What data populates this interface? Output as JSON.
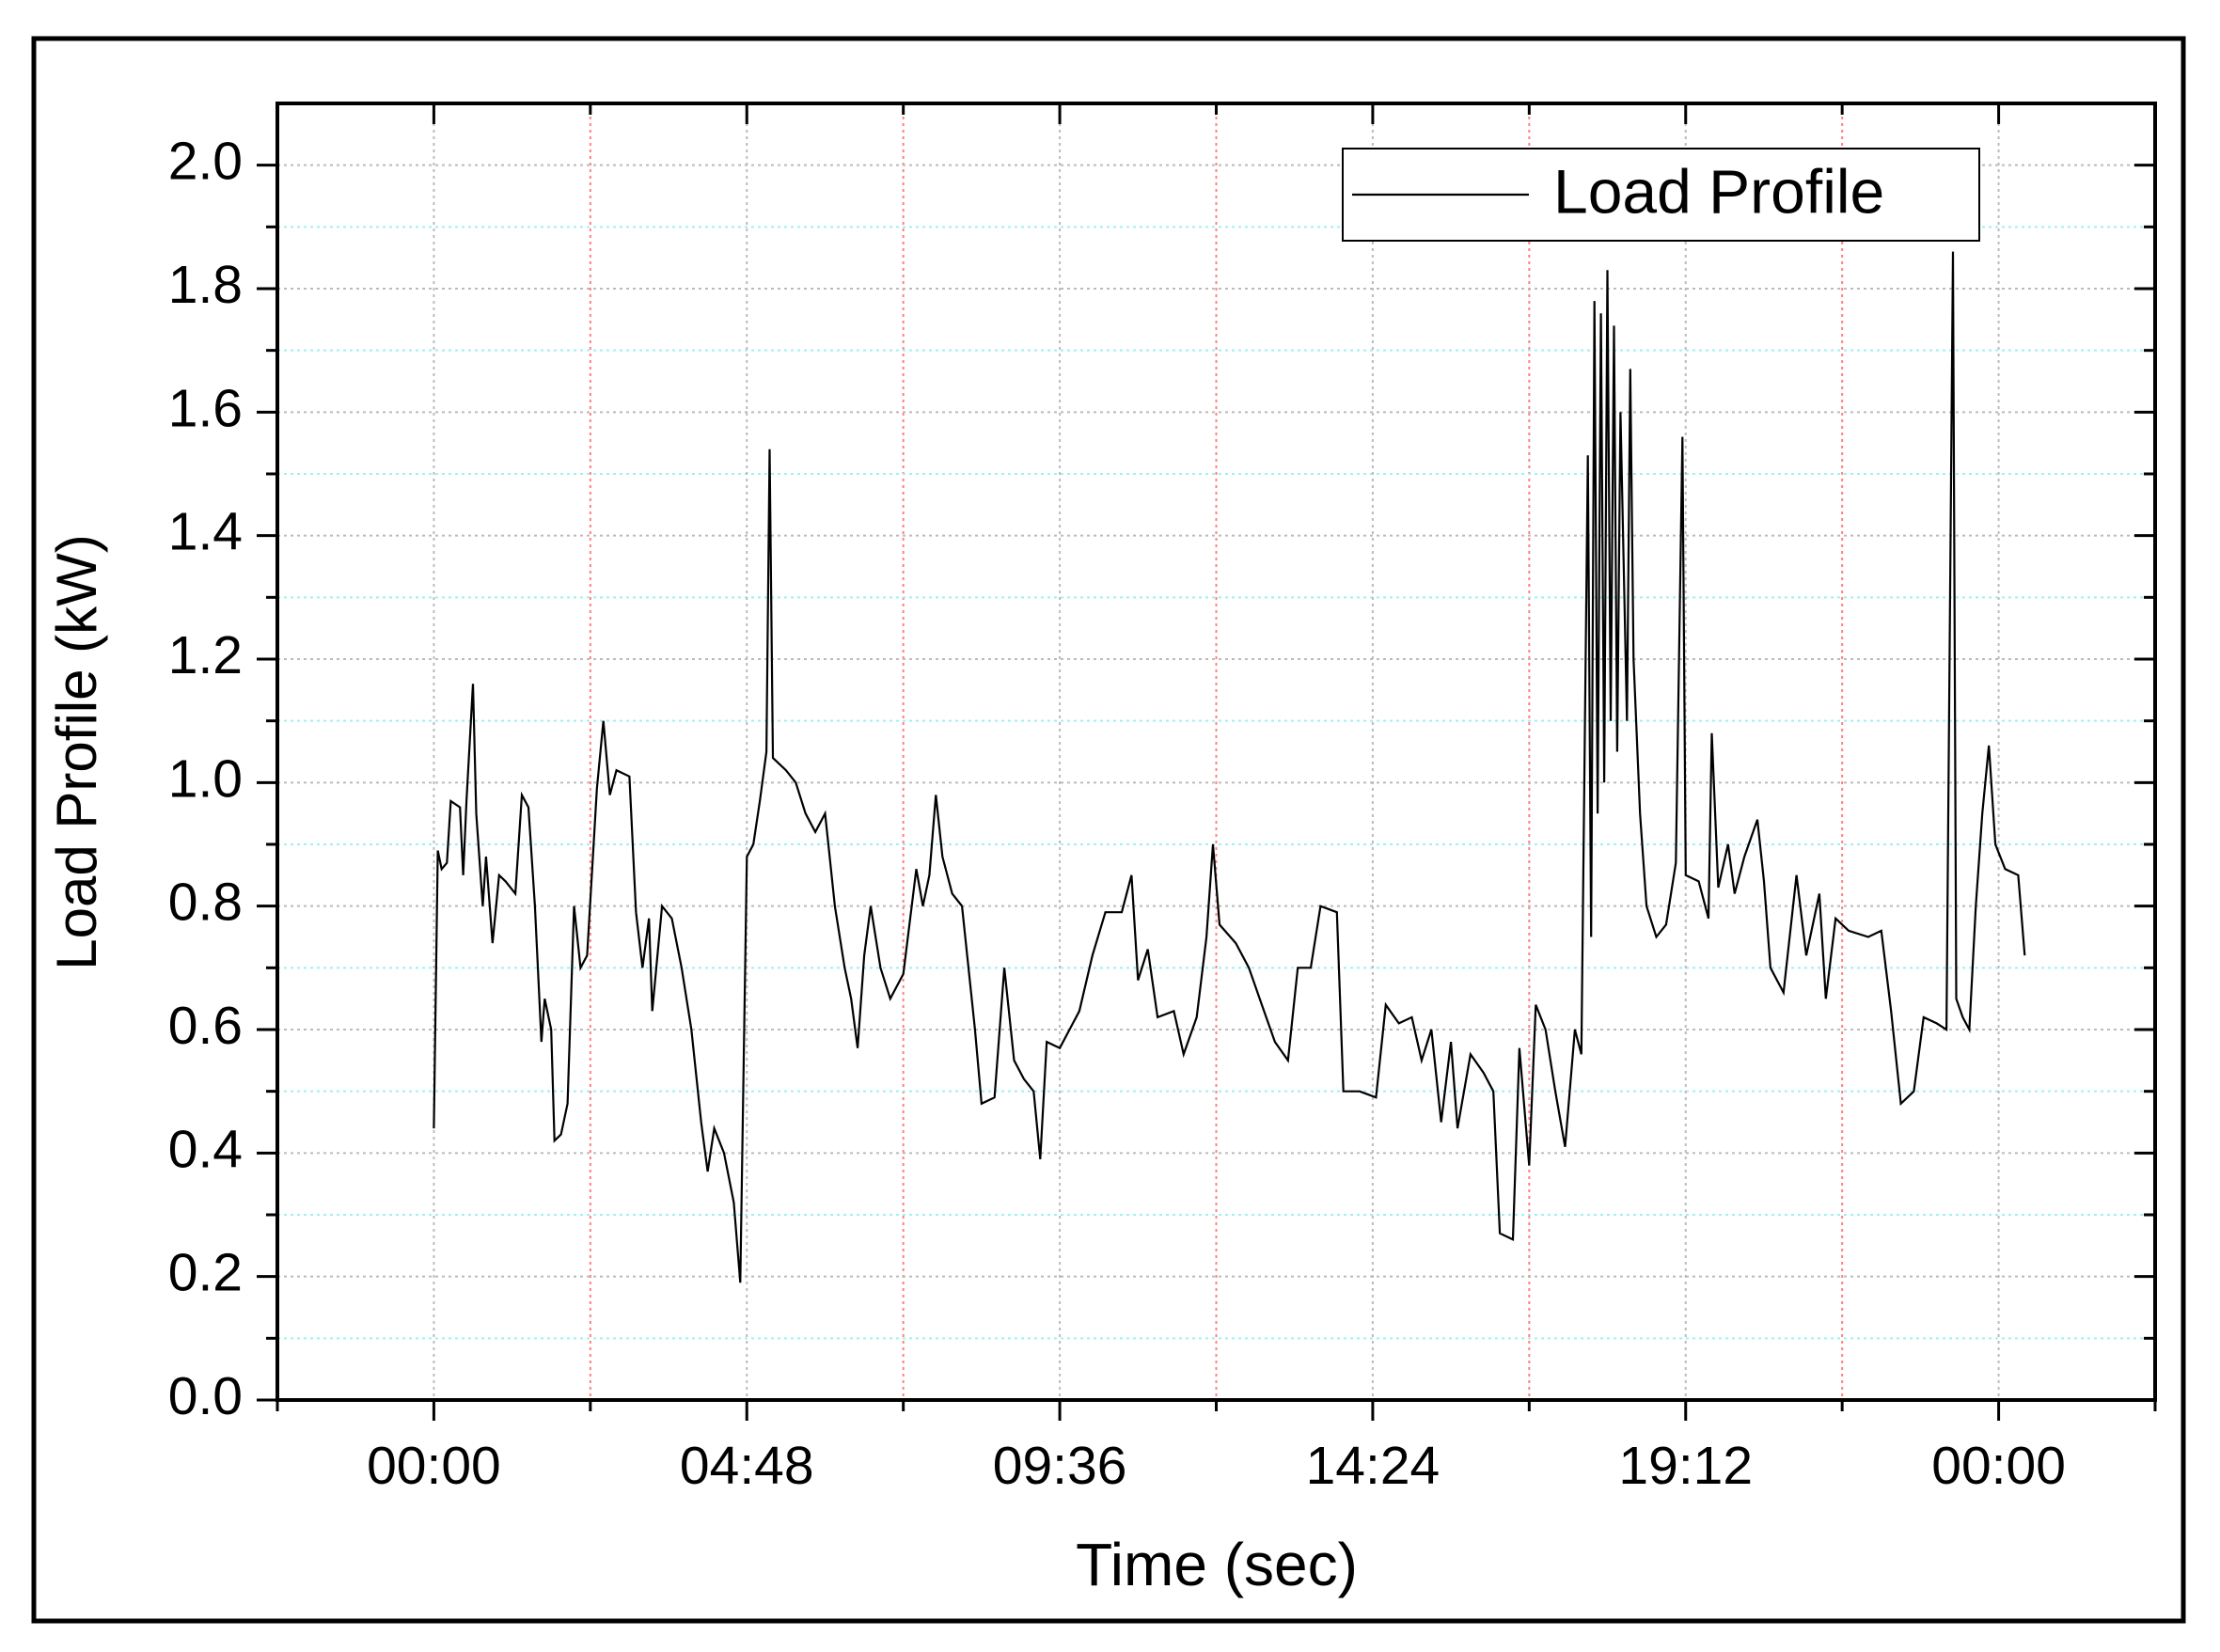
{
  "chart_data": {
    "type": "line",
    "xlabel": "Time (sec)",
    "ylabel": "Load Profile (kW)",
    "xlabel_color": "#ff0000",
    "x": [
      0.0,
      0.06,
      0.12,
      0.2,
      0.26,
      0.4,
      0.45,
      0.5,
      0.6,
      0.65,
      0.75,
      0.8,
      0.9,
      1.0,
      1.1,
      1.25,
      1.35,
      1.45,
      1.55,
      1.65,
      1.7,
      1.8,
      1.85,
      1.95,
      2.05,
      2.15,
      2.25,
      2.35,
      2.5,
      2.6,
      2.7,
      2.8,
      3.0,
      3.1,
      3.2,
      3.3,
      3.35,
      3.5,
      3.65,
      3.8,
      3.95,
      4.1,
      4.2,
      4.3,
      4.45,
      4.6,
      4.7,
      4.8,
      4.9,
      5.0,
      5.1,
      5.15,
      5.2,
      5.4,
      5.55,
      5.7,
      5.85,
      6.0,
      6.15,
      6.3,
      6.4,
      6.5,
      6.6,
      6.7,
      6.85,
      7.0,
      7.2,
      7.4,
      7.5,
      7.6,
      7.7,
      7.8,
      7.95,
      8.1,
      8.3,
      8.4,
      8.6,
      8.75,
      8.9,
      9.05,
      9.2,
      9.3,
      9.4,
      9.6,
      9.9,
      10.1,
      10.3,
      10.55,
      10.7,
      10.8,
      10.95,
      11.1,
      11.35,
      11.5,
      11.7,
      11.85,
      11.95,
      12.05,
      12.3,
      12.5,
      12.7,
      12.9,
      13.1,
      13.25,
      13.45,
      13.6,
      13.85,
      13.95,
      14.2,
      14.45,
      14.6,
      14.8,
      15.0,
      15.15,
      15.3,
      15.45,
      15.6,
      15.7,
      15.9,
      16.1,
      16.25,
      16.35,
      16.55,
      16.65,
      16.8,
      16.9,
      17.05,
      17.2,
      17.35,
      17.5,
      17.6,
      17.7,
      17.75,
      17.8,
      17.85,
      17.9,
      17.95,
      18.0,
      18.05,
      18.1,
      18.15,
      18.2,
      18.3,
      18.35,
      18.4,
      18.5,
      18.6,
      18.75,
      18.9,
      19.05,
      19.15,
      19.2,
      19.4,
      19.55,
      19.6,
      19.7,
      19.85,
      19.95,
      20.1,
      20.3,
      20.4,
      20.5,
      20.7,
      20.9,
      21.05,
      21.25,
      21.35,
      21.5,
      21.7,
      22.0,
      22.2,
      22.35,
      22.5,
      22.7,
      22.85,
      23.05,
      23.2,
      23.3,
      23.35,
      23.45,
      23.55,
      23.65,
      23.75,
      23.85,
      23.95,
      24.1,
      24.3,
      24.4
    ],
    "series": [
      {
        "name": "Load Profile",
        "color": "#000000",
        "values": [
          0.44,
          0.89,
          0.86,
          0.87,
          0.97,
          0.96,
          0.85,
          0.97,
          1.16,
          0.95,
          0.8,
          0.88,
          0.74,
          0.85,
          0.84,
          0.82,
          0.98,
          0.96,
          0.8,
          0.58,
          0.65,
          0.6,
          0.42,
          0.43,
          0.48,
          0.8,
          0.7,
          0.72,
          0.99,
          1.1,
          0.98,
          1.02,
          1.01,
          0.79,
          0.7,
          0.78,
          0.63,
          0.8,
          0.78,
          0.7,
          0.6,
          0.45,
          0.37,
          0.44,
          0.4,
          0.32,
          0.19,
          0.88,
          0.9,
          0.97,
          1.05,
          1.54,
          1.04,
          1.02,
          1.0,
          0.95,
          0.92,
          0.95,
          0.8,
          0.7,
          0.65,
          0.57,
          0.72,
          0.8,
          0.7,
          0.65,
          0.69,
          0.86,
          0.8,
          0.85,
          0.98,
          0.88,
          0.82,
          0.8,
          0.6,
          0.48,
          0.49,
          0.7,
          0.55,
          0.52,
          0.5,
          0.39,
          0.58,
          0.57,
          0.63,
          0.72,
          0.79,
          0.79,
          0.85,
          0.68,
          0.73,
          0.62,
          0.63,
          0.56,
          0.62,
          0.75,
          0.9,
          0.77,
          0.74,
          0.7,
          0.64,
          0.58,
          0.55,
          0.7,
          0.7,
          0.8,
          0.79,
          0.5,
          0.5,
          0.49,
          0.64,
          0.61,
          0.62,
          0.55,
          0.6,
          0.45,
          0.58,
          0.44,
          0.56,
          0.53,
          0.5,
          0.27,
          0.26,
          0.57,
          0.38,
          0.64,
          0.6,
          0.5,
          0.41,
          0.6,
          0.56,
          1.53,
          0.75,
          1.78,
          0.95,
          1.76,
          1.0,
          1.83,
          1.1,
          1.74,
          1.05,
          1.6,
          1.1,
          1.67,
          1.2,
          0.95,
          0.8,
          0.75,
          0.77,
          0.87,
          1.56,
          0.85,
          0.84,
          0.78,
          1.08,
          0.83,
          0.9,
          0.82,
          0.88,
          0.94,
          0.84,
          0.7,
          0.66,
          0.85,
          0.72,
          0.82,
          0.65,
          0.78,
          0.76,
          0.75,
          0.76,
          0.63,
          0.48,
          0.5,
          0.62,
          0.61,
          0.6,
          1.86,
          0.65,
          0.62,
          0.6,
          0.8,
          0.95,
          1.06,
          0.9,
          0.86,
          0.85,
          0.72
        ]
      }
    ],
    "xlim": [
      -2.4,
      26.4
    ],
    "xticks": [
      {
        "value": 0,
        "label": "00:00"
      },
      {
        "value": 4.8,
        "label": "04:48"
      },
      {
        "value": 9.6,
        "label": "09:36"
      },
      {
        "value": 14.4,
        "label": "14:24"
      },
      {
        "value": 19.2,
        "label": "19:12"
      },
      {
        "value": 24,
        "label": "00:00"
      }
    ],
    "minor_xticks": [
      -2.4,
      2.4,
      7.2,
      12,
      16.8,
      21.6,
      26.4
    ],
    "ylim": [
      0,
      2.1
    ],
    "yticks": [
      {
        "value": 0,
        "label": "0.0"
      },
      0.2,
      0.4,
      0.6,
      0.8,
      {
        "value": 1,
        "label": "1.0"
      },
      1.2,
      1.4,
      1.6,
      1.8,
      {
        "value": 2,
        "label": "2.0"
      }
    ],
    "minor_yticks": [
      0.1,
      0.3,
      0.5,
      0.7,
      0.9,
      1.1,
      1.3,
      1.5,
      1.7,
      1.9
    ],
    "grid": true,
    "grid_color": "#bbbbbb",
    "minor_xgrid_color": "#ff8080",
    "minor_ygrid_color": "#9ff0f0",
    "legend": "upper right"
  }
}
